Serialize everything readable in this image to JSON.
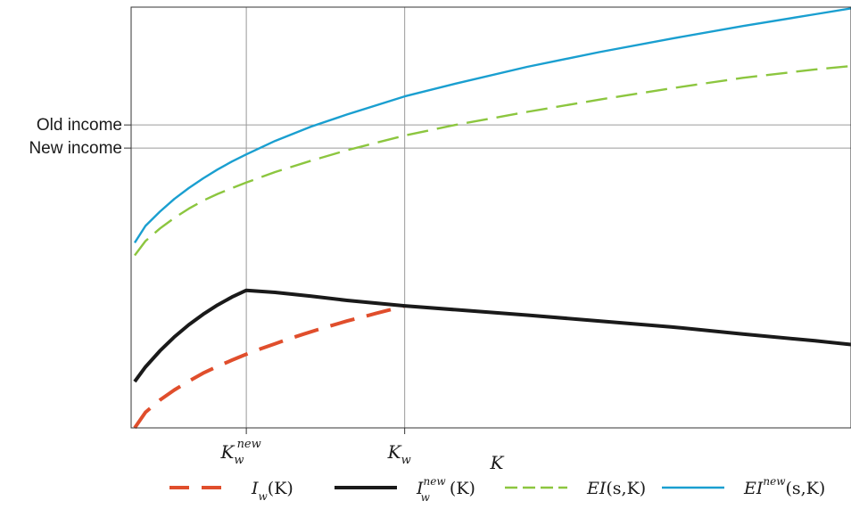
{
  "chart_data": {
    "type": "line",
    "xlabel": "K",
    "ylabel": "",
    "x_ticks": [
      {
        "id": "k_w_new",
        "base": "K",
        "sub": "w",
        "sup": "new",
        "x": 0.16
      },
      {
        "id": "k_w",
        "base": "K",
        "sub": "w",
        "sup": "",
        "x": 0.38
      }
    ],
    "y_ticks": [
      {
        "id": "old_income",
        "label": "Old income",
        "y": 0.72
      },
      {
        "id": "new_income",
        "label": "New income",
        "y": 0.665
      }
    ],
    "xlim": [
      0,
      1
    ],
    "ylim": [
      0,
      1
    ],
    "grid": false,
    "legend_position": "bottom",
    "series": [
      {
        "id": "iw",
        "legend": {
          "base": "I",
          "sub": "w",
          "sup": "",
          "arg": "(K)"
        },
        "color": "#e04e2c",
        "style": "dashed",
        "points": [
          [
            0.005,
            0.0
          ],
          [
            0.02,
            0.037
          ],
          [
            0.04,
            0.066
          ],
          [
            0.06,
            0.09
          ],
          [
            0.08,
            0.111
          ],
          [
            0.1,
            0.13
          ],
          [
            0.12,
            0.146
          ],
          [
            0.14,
            0.161
          ],
          [
            0.16,
            0.175
          ],
          [
            0.18,
            0.188
          ],
          [
            0.2,
            0.2
          ],
          [
            0.22,
            0.212
          ],
          [
            0.24,
            0.223
          ],
          [
            0.26,
            0.234
          ],
          [
            0.28,
            0.244
          ],
          [
            0.3,
            0.254
          ],
          [
            0.32,
            0.263
          ],
          [
            0.34,
            0.272
          ],
          [
            0.36,
            0.281
          ],
          [
            0.38,
            0.29
          ]
        ]
      },
      {
        "id": "iw_new",
        "legend": {
          "base": "I",
          "sub": "w",
          "sup": "new",
          "arg": "(K)"
        },
        "color": "#1a1a1a",
        "style": "solid",
        "points": [
          [
            0.005,
            0.11
          ],
          [
            0.02,
            0.145
          ],
          [
            0.04,
            0.183
          ],
          [
            0.06,
            0.216
          ],
          [
            0.08,
            0.245
          ],
          [
            0.1,
            0.27
          ],
          [
            0.12,
            0.292
          ],
          [
            0.14,
            0.311
          ],
          [
            0.16,
            0.327
          ],
          [
            0.2,
            0.322
          ],
          [
            0.25,
            0.313
          ],
          [
            0.3,
            0.303
          ],
          [
            0.38,
            0.29
          ],
          [
            0.45,
            0.281
          ],
          [
            0.55,
            0.268
          ],
          [
            0.65,
            0.254
          ],
          [
            0.75,
            0.24
          ],
          [
            0.85,
            0.223
          ],
          [
            0.95,
            0.207
          ],
          [
            1.0,
            0.198
          ]
        ]
      },
      {
        "id": "ei",
        "legend": {
          "base": "EI",
          "sub": "",
          "sup": "",
          "arg": "(s,K)"
        },
        "color": "#8cc63f",
        "style": "dashed",
        "points": [
          [
            0.005,
            0.41
          ],
          [
            0.02,
            0.444
          ],
          [
            0.04,
            0.474
          ],
          [
            0.06,
            0.499
          ],
          [
            0.08,
            0.521
          ],
          [
            0.1,
            0.54
          ],
          [
            0.12,
            0.556
          ],
          [
            0.14,
            0.57
          ],
          [
            0.16,
            0.583
          ],
          [
            0.2,
            0.608
          ],
          [
            0.25,
            0.635
          ],
          [
            0.3,
            0.66
          ],
          [
            0.38,
            0.695
          ],
          [
            0.45,
            0.72
          ],
          [
            0.55,
            0.751
          ],
          [
            0.65,
            0.78
          ],
          [
            0.75,
            0.807
          ],
          [
            0.85,
            0.832
          ],
          [
            0.95,
            0.852
          ],
          [
            1.0,
            0.86
          ]
        ]
      },
      {
        "id": "ei_new",
        "legend": {
          "base": "EI",
          "sub": "",
          "sup": "new",
          "arg": "(s,K)"
        },
        "color": "#1a9fd0",
        "style": "solid",
        "points": [
          [
            0.005,
            0.44
          ],
          [
            0.02,
            0.48
          ],
          [
            0.04,
            0.514
          ],
          [
            0.06,
            0.544
          ],
          [
            0.08,
            0.57
          ],
          [
            0.1,
            0.593
          ],
          [
            0.12,
            0.614
          ],
          [
            0.14,
            0.633
          ],
          [
            0.16,
            0.65
          ],
          [
            0.2,
            0.682
          ],
          [
            0.25,
            0.716
          ],
          [
            0.3,
            0.745
          ],
          [
            0.38,
            0.788
          ],
          [
            0.45,
            0.818
          ],
          [
            0.55,
            0.858
          ],
          [
            0.65,
            0.893
          ],
          [
            0.75,
            0.925
          ],
          [
            0.85,
            0.955
          ],
          [
            0.95,
            0.983
          ],
          [
            1.0,
            0.997
          ]
        ]
      }
    ]
  }
}
